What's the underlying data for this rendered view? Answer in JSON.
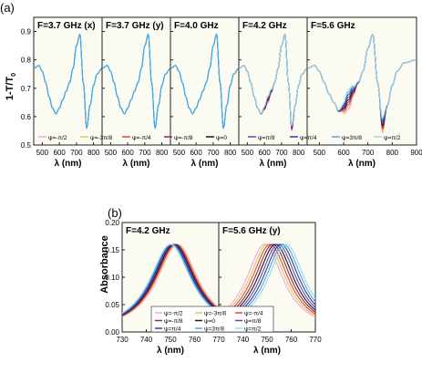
{
  "figure": {
    "label_a": "(a)",
    "label_b": "(b)",
    "panel_a_ylabel": "1-T/T",
    "panel_a_ylabel_sub": "0",
    "panel_b_ylabel": "Absorbance",
    "xlabel": "λ (nm)"
  },
  "legend": [
    {
      "label": "ψ=-π/2",
      "color": "#f2a8e0"
    },
    {
      "label": "ψ=-3π/8",
      "color": "#e8c25a"
    },
    {
      "label": "ψ=-π/4",
      "color": "#e0473a"
    },
    {
      "label": "ψ=-π/8",
      "color": "#8a2a5a"
    },
    {
      "label": "ψ=0",
      "color": "#1a1a1a"
    },
    {
      "label": "ψ=π/8",
      "color": "#6a4aa8"
    },
    {
      "label": "ψ=π/4",
      "color": "#2a3ab8"
    },
    {
      "label": "ψ=3π/8",
      "color": "#4aa8e0"
    },
    {
      "label": "ψ=π/2",
      "color": "#9ad8ea"
    }
  ],
  "chart_data": [
    {
      "type": "line",
      "title": "F=3.7 GHz (x)",
      "xlabel": "λ (nm)",
      "ylabel": "1-T/T0",
      "xlim": [
        450,
        850
      ],
      "ylim": [
        0.5,
        0.95
      ],
      "xticks": [
        500,
        600,
        700,
        800
      ],
      "yticks": [
        0.5,
        0.6,
        0.7,
        0.8,
        0.9
      ],
      "series": [
        {
          "x": [
            450,
            480,
            500,
            520,
            540,
            560,
            580,
            600,
            620,
            640,
            660,
            680,
            700,
            720,
            740,
            760,
            780,
            800,
            820,
            850
          ],
          "y": [
            0.77,
            0.78,
            0.76,
            0.72,
            0.67,
            0.63,
            0.61,
            0.63,
            0.66,
            0.69,
            0.72,
            0.77,
            0.85,
            0.89,
            0.72,
            0.56,
            0.64,
            0.71,
            0.75,
            0.77
          ]
        }
      ],
      "spread": 0
    },
    {
      "type": "line",
      "title": "F=3.7 GHz (y)",
      "xlabel": "λ (nm)",
      "ylabel": "1-T/T0",
      "xlim": [
        450,
        850
      ],
      "ylim": [
        0.5,
        0.95
      ],
      "xticks": [
        500,
        600,
        700,
        800
      ],
      "yticks": [
        0.5,
        0.6,
        0.7,
        0.8,
        0.9
      ],
      "series": [
        {
          "x": [
            450,
            480,
            500,
            520,
            540,
            560,
            580,
            600,
            620,
            640,
            660,
            680,
            700,
            720,
            740,
            760,
            780,
            800,
            820,
            850
          ],
          "y": [
            0.77,
            0.78,
            0.76,
            0.72,
            0.67,
            0.63,
            0.61,
            0.63,
            0.66,
            0.69,
            0.72,
            0.77,
            0.85,
            0.89,
            0.72,
            0.56,
            0.64,
            0.71,
            0.75,
            0.77
          ]
        }
      ],
      "spread": 0
    },
    {
      "type": "line",
      "title": "F=4.0 GHz",
      "xlabel": "λ (nm)",
      "ylabel": "1-T/T0",
      "xlim": [
        450,
        850
      ],
      "ylim": [
        0.5,
        0.95
      ],
      "xticks": [
        500,
        600,
        700,
        800
      ],
      "yticks": [
        0.5,
        0.6,
        0.7,
        0.8,
        0.9
      ],
      "series": [
        {
          "x": [
            450,
            480,
            500,
            520,
            540,
            560,
            580,
            600,
            620,
            640,
            660,
            680,
            700,
            720,
            740,
            760,
            780,
            800,
            820,
            850
          ],
          "y": [
            0.77,
            0.78,
            0.76,
            0.72,
            0.67,
            0.63,
            0.61,
            0.63,
            0.66,
            0.69,
            0.72,
            0.77,
            0.85,
            0.89,
            0.72,
            0.56,
            0.64,
            0.71,
            0.75,
            0.77
          ]
        }
      ],
      "spread": 0
    },
    {
      "type": "line",
      "title": "F=4.2 GHz",
      "xlabel": "λ (nm)",
      "ylabel": "1-T/T0",
      "xlim": [
        450,
        850
      ],
      "ylim": [
        0.5,
        0.95
      ],
      "xticks": [
        500,
        600,
        700,
        800
      ],
      "yticks": [
        0.5,
        0.6,
        0.7,
        0.8,
        0.9
      ],
      "series": [
        {
          "x": [
            450,
            480,
            500,
            520,
            540,
            560,
            580,
            600,
            620,
            640,
            660,
            680,
            700,
            720,
            740,
            760,
            780,
            800,
            820,
            850
          ],
          "y": [
            0.77,
            0.78,
            0.76,
            0.72,
            0.67,
            0.63,
            0.61,
            0.63,
            0.66,
            0.69,
            0.72,
            0.77,
            0.85,
            0.89,
            0.72,
            0.56,
            0.64,
            0.71,
            0.75,
            0.77
          ]
        }
      ],
      "spread": 0.012
    },
    {
      "type": "line",
      "title": "F=5.6 GHz",
      "xlabel": "λ (nm)",
      "ylabel": "1-T/T0",
      "xlim": [
        450,
        900
      ],
      "ylim": [
        0.5,
        0.95
      ],
      "xticks": [
        500,
        600,
        700,
        800,
        900
      ],
      "yticks": [
        0.5,
        0.6,
        0.7,
        0.8,
        0.9
      ],
      "series": [
        {
          "x": [
            450,
            480,
            500,
            520,
            540,
            560,
            580,
            600,
            620,
            640,
            660,
            680,
            700,
            720,
            740,
            760,
            780,
            800,
            820,
            850,
            900
          ],
          "y": [
            0.77,
            0.78,
            0.76,
            0.72,
            0.68,
            0.65,
            0.62,
            0.63,
            0.66,
            0.69,
            0.72,
            0.76,
            0.84,
            0.89,
            0.72,
            0.57,
            0.64,
            0.71,
            0.76,
            0.79,
            0.8
          ]
        }
      ],
      "spread": 0.035
    },
    {
      "type": "line",
      "title": "F=4.2 GHz",
      "xlabel": "λ (nm)",
      "ylabel": "Absorbance",
      "xlim": [
        730,
        770
      ],
      "ylim": [
        0.0,
        0.2
      ],
      "xticks": [
        730,
        740,
        750,
        760,
        770
      ],
      "yticks": [
        0.0,
        0.05,
        0.1,
        0.15,
        0.2
      ],
      "peak_center": [
        753,
        750
      ],
      "peak_value": [
        0.16,
        0.16
      ],
      "width": 10.5
    },
    {
      "type": "line",
      "title": "F=5.6 GHz (y)",
      "xlabel": "λ (nm)",
      "ylabel": "Absorbance",
      "xlim": [
        730,
        770
      ],
      "ylim": [
        0.0,
        0.2
      ],
      "xticks": [
        740,
        750,
        760,
        770
      ],
      "yticks": [
        0.0,
        0.05,
        0.1,
        0.15,
        0.2
      ],
      "peak_center": [
        749,
        758
      ],
      "peak_value": [
        0.16,
        0.16
      ],
      "width": 9.5
    }
  ]
}
